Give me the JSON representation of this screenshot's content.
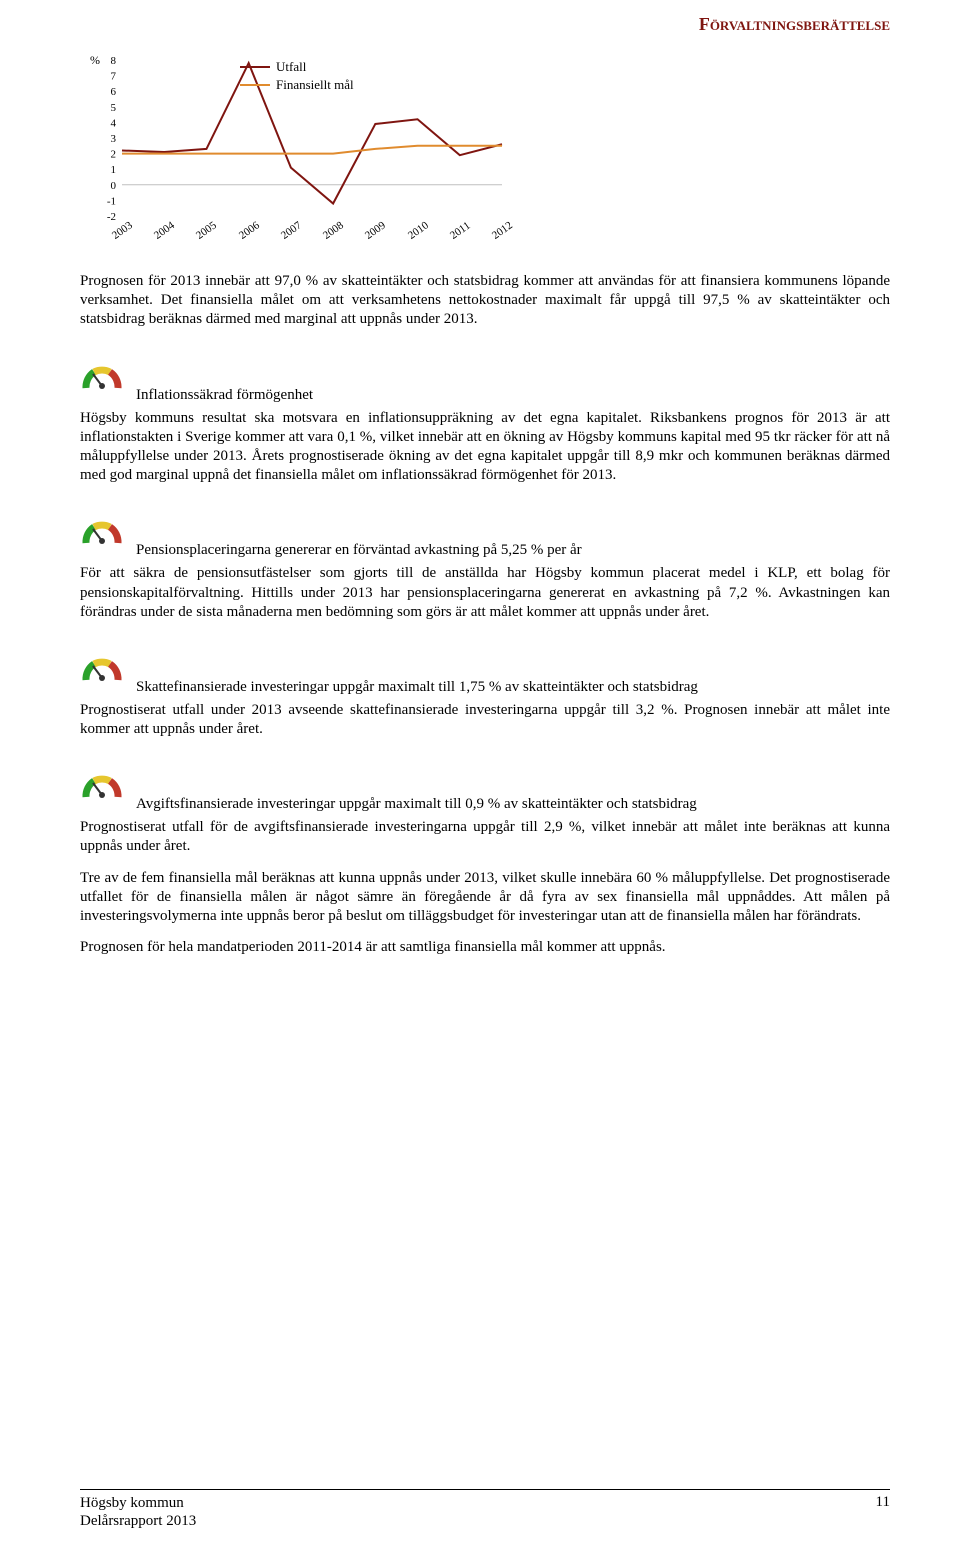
{
  "header": {
    "accent_color": "#7f1510",
    "title": "Förvaltningsberättelse"
  },
  "chart": {
    "type": "line",
    "y_axis": {
      "label": "%",
      "min": -2,
      "max": 8,
      "tick_step": 1,
      "ticks": [
        -2,
        -1,
        0,
        1,
        2,
        3,
        4,
        5,
        6,
        7,
        8
      ]
    },
    "x_axis": {
      "categories": [
        "2003",
        "2004",
        "2005",
        "2006",
        "2007",
        "2008",
        "2009",
        "2010",
        "2011",
        "2012"
      ],
      "rotation_deg": -35
    },
    "zero_line_color": "#bfbfbf",
    "series": [
      {
        "name": "Utfall",
        "color": "#7f1510",
        "values": [
          2.2,
          2.1,
          2.3,
          7.8,
          1.1,
          -1.2,
          3.9,
          4.2,
          1.9,
          2.6
        ]
      },
      {
        "name": "Finansiellt mål",
        "color": "#e08b2e",
        "values": [
          2.0,
          2.0,
          2.0,
          2.0,
          2.0,
          2.0,
          2.3,
          2.5,
          2.5,
          2.5
        ]
      }
    ],
    "line_width": 2,
    "background_color": "#ffffff",
    "font_size_axis": 11,
    "font_size_legend": 13
  },
  "para_after_chart": "Prognosen för 2013 innebär att 97,0 % av skatteintäkter och statsbidrag kommer att användas för att finansiera kommunens löpande verksamhet. Det finansiella målet om att verksamhetens nettokostnader maximalt får uppgå till 97,5 % av skatteintäkter och statsbidrag beräknas därmed med marginal att uppnås under 2013.",
  "sections": [
    {
      "icon": "gauge",
      "title": "Inflationssäkrad förmögenhet",
      "body": "Högsby kommuns resultat ska motsvara en inflationsuppräkning av det egna kapitalet. Riksbankens prognos för 2013 är att inflationstakten i Sverige kommer att vara 0,1 %, vilket innebär att en ökning av Högsby kommuns kapital med 95 tkr räcker för att nå måluppfyllelse under 2013. Årets prognostiserade ökning av det egna kapitalet uppgår till 8,9 mkr och kommunen beräknas därmed med god marginal uppnå det finansiella målet om inflationssäkrad förmögenhet för 2013."
    },
    {
      "icon": "gauge",
      "title": "Pensionsplaceringarna genererar en förväntad avkastning på 5,25 % per år",
      "body": "För att säkra de pensionsutfästelser som gjorts till de anställda har Högsby kommun placerat medel i KLP, ett bolag för pensionskapitalförvaltning. Hittills under 2013 har pensionsplaceringarna genererat en avkastning på 7,2 %. Avkastningen kan förändras under de sista månaderna men bedömning som görs är att målet kommer att uppnås under året."
    },
    {
      "icon": "gauge",
      "title": "Skattefinansierade investeringar uppgår maximalt till 1,75 % av skatteintäkter och statsbidrag",
      "body": "Prognostiserat utfall under 2013 avseende skattefinansierade investeringarna uppgår till 3,2 %. Prognosen innebär att målet inte kommer att uppnås under året."
    },
    {
      "icon": "gauge",
      "title": "Avgiftsfinansierade investeringar uppgår maximalt till 0,9 % av skatteintäkter och statsbidrag",
      "body": "Prognostiserat utfall för de avgiftsfinansierade investeringarna uppgår till 2,9 %, vilket innebär att målet inte beräknas att kunna uppnås under året."
    }
  ],
  "closing_paragraphs": [
    "Tre av de fem finansiella mål beräknas att kunna uppnås under 2013, vilket skulle innebära 60 % måluppfyllelse. Det prognostiserade utfallet för de finansiella målen är något sämre än föregående år då fyra av sex finansiella mål uppnåddes. Att målen på investeringsvolymerna inte uppnås beror på beslut om tilläggsbudget för investeringar utan att de finansiella målen har förändrats.",
    "Prognosen för hela mandatperioden 2011-2014 är att samtliga finansiella mål kommer att uppnås."
  ],
  "footer": {
    "line1": "Högsby kommun",
    "line2": "Delårsrapport 2013",
    "page": "11"
  }
}
